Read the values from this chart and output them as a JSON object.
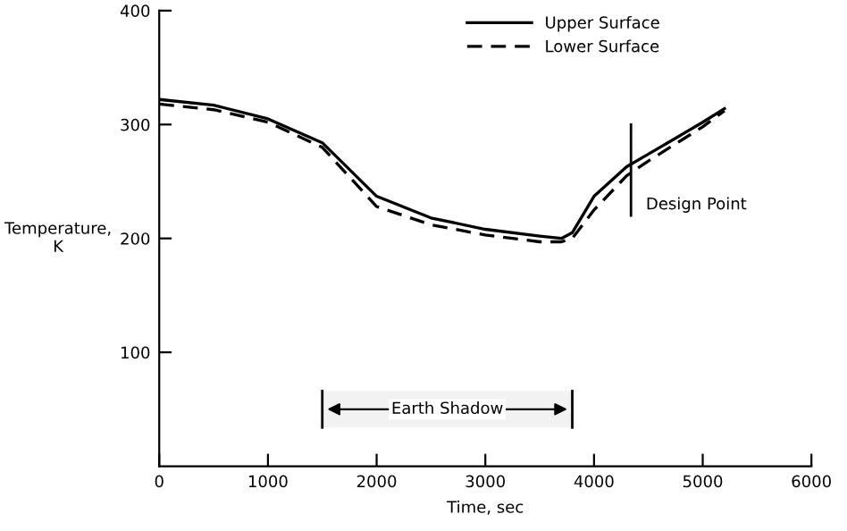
{
  "chart_data": {
    "type": "line",
    "xlabel": "Time, sec",
    "ylabel": "Temperature,\nK",
    "xlim": [
      0,
      6000
    ],
    "ylim": [
      0,
      400
    ],
    "xticks": [
      0,
      1000,
      2000,
      3000,
      4000,
      5000,
      6000
    ],
    "yticks": [
      100,
      200,
      300,
      400
    ],
    "grid": false,
    "legend": "top",
    "marker": "none",
    "x": [
      0,
      500,
      1000,
      1500,
      2000,
      2500,
      3000,
      3500,
      3700,
      3800,
      4000,
      4300,
      4500,
      5000,
      5200
    ],
    "series": [
      {
        "name": "Upper Surface",
        "color": "#000000",
        "line_style": "solid",
        "values": [
          322,
          317,
          305,
          284,
          237,
          218,
          208,
          202,
          200,
          205,
          237,
          263,
          274,
          302,
          314
        ]
      },
      {
        "name": "Lower Surface",
        "color": "#000000",
        "line_style": "dashed",
        "values": [
          318,
          313,
          302,
          280,
          228,
          212,
          203,
          197,
          197,
          200,
          225,
          255,
          268,
          298,
          312
        ]
      }
    ],
    "bands": [
      {
        "axis": "x",
        "from": 1500,
        "to": 3800,
        "label": "Earth Shadow"
      }
    ],
    "annotations": [
      {
        "text": "Design Point",
        "x": 4340,
        "y": 260
      }
    ]
  }
}
